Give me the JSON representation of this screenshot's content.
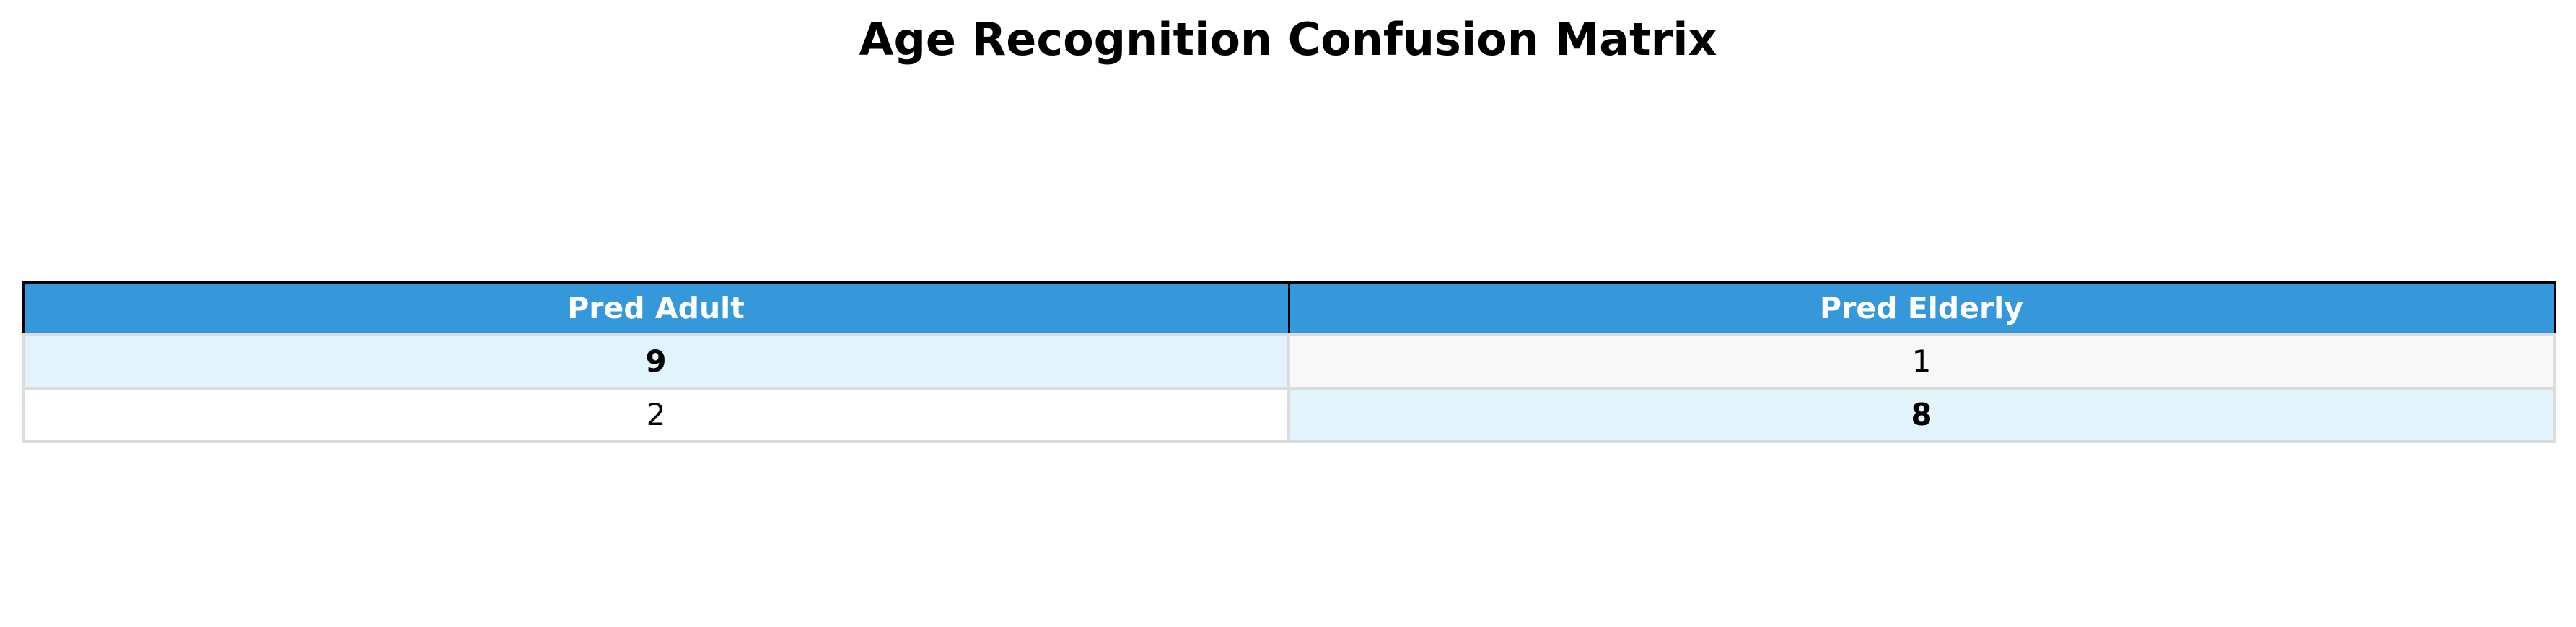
{
  "colors": {
    "header_bg": "#3498db",
    "header_text": "#ffffff",
    "correct_cell_bg": "#e1f4fc",
    "error_cell_bg_row1": "#f8f8f8",
    "error_cell_bg_row2": "#ffffff",
    "cell_border": "#dcdcdc",
    "header_border": "#000000"
  },
  "chart_data": {
    "type": "table",
    "title": "Age Recognition Confusion Matrix",
    "columns": [
      "Pred Adult",
      "Pred Elderly"
    ],
    "rows": [
      [
        9,
        1
      ],
      [
        2,
        8
      ]
    ],
    "highlight_diagonal": true
  }
}
